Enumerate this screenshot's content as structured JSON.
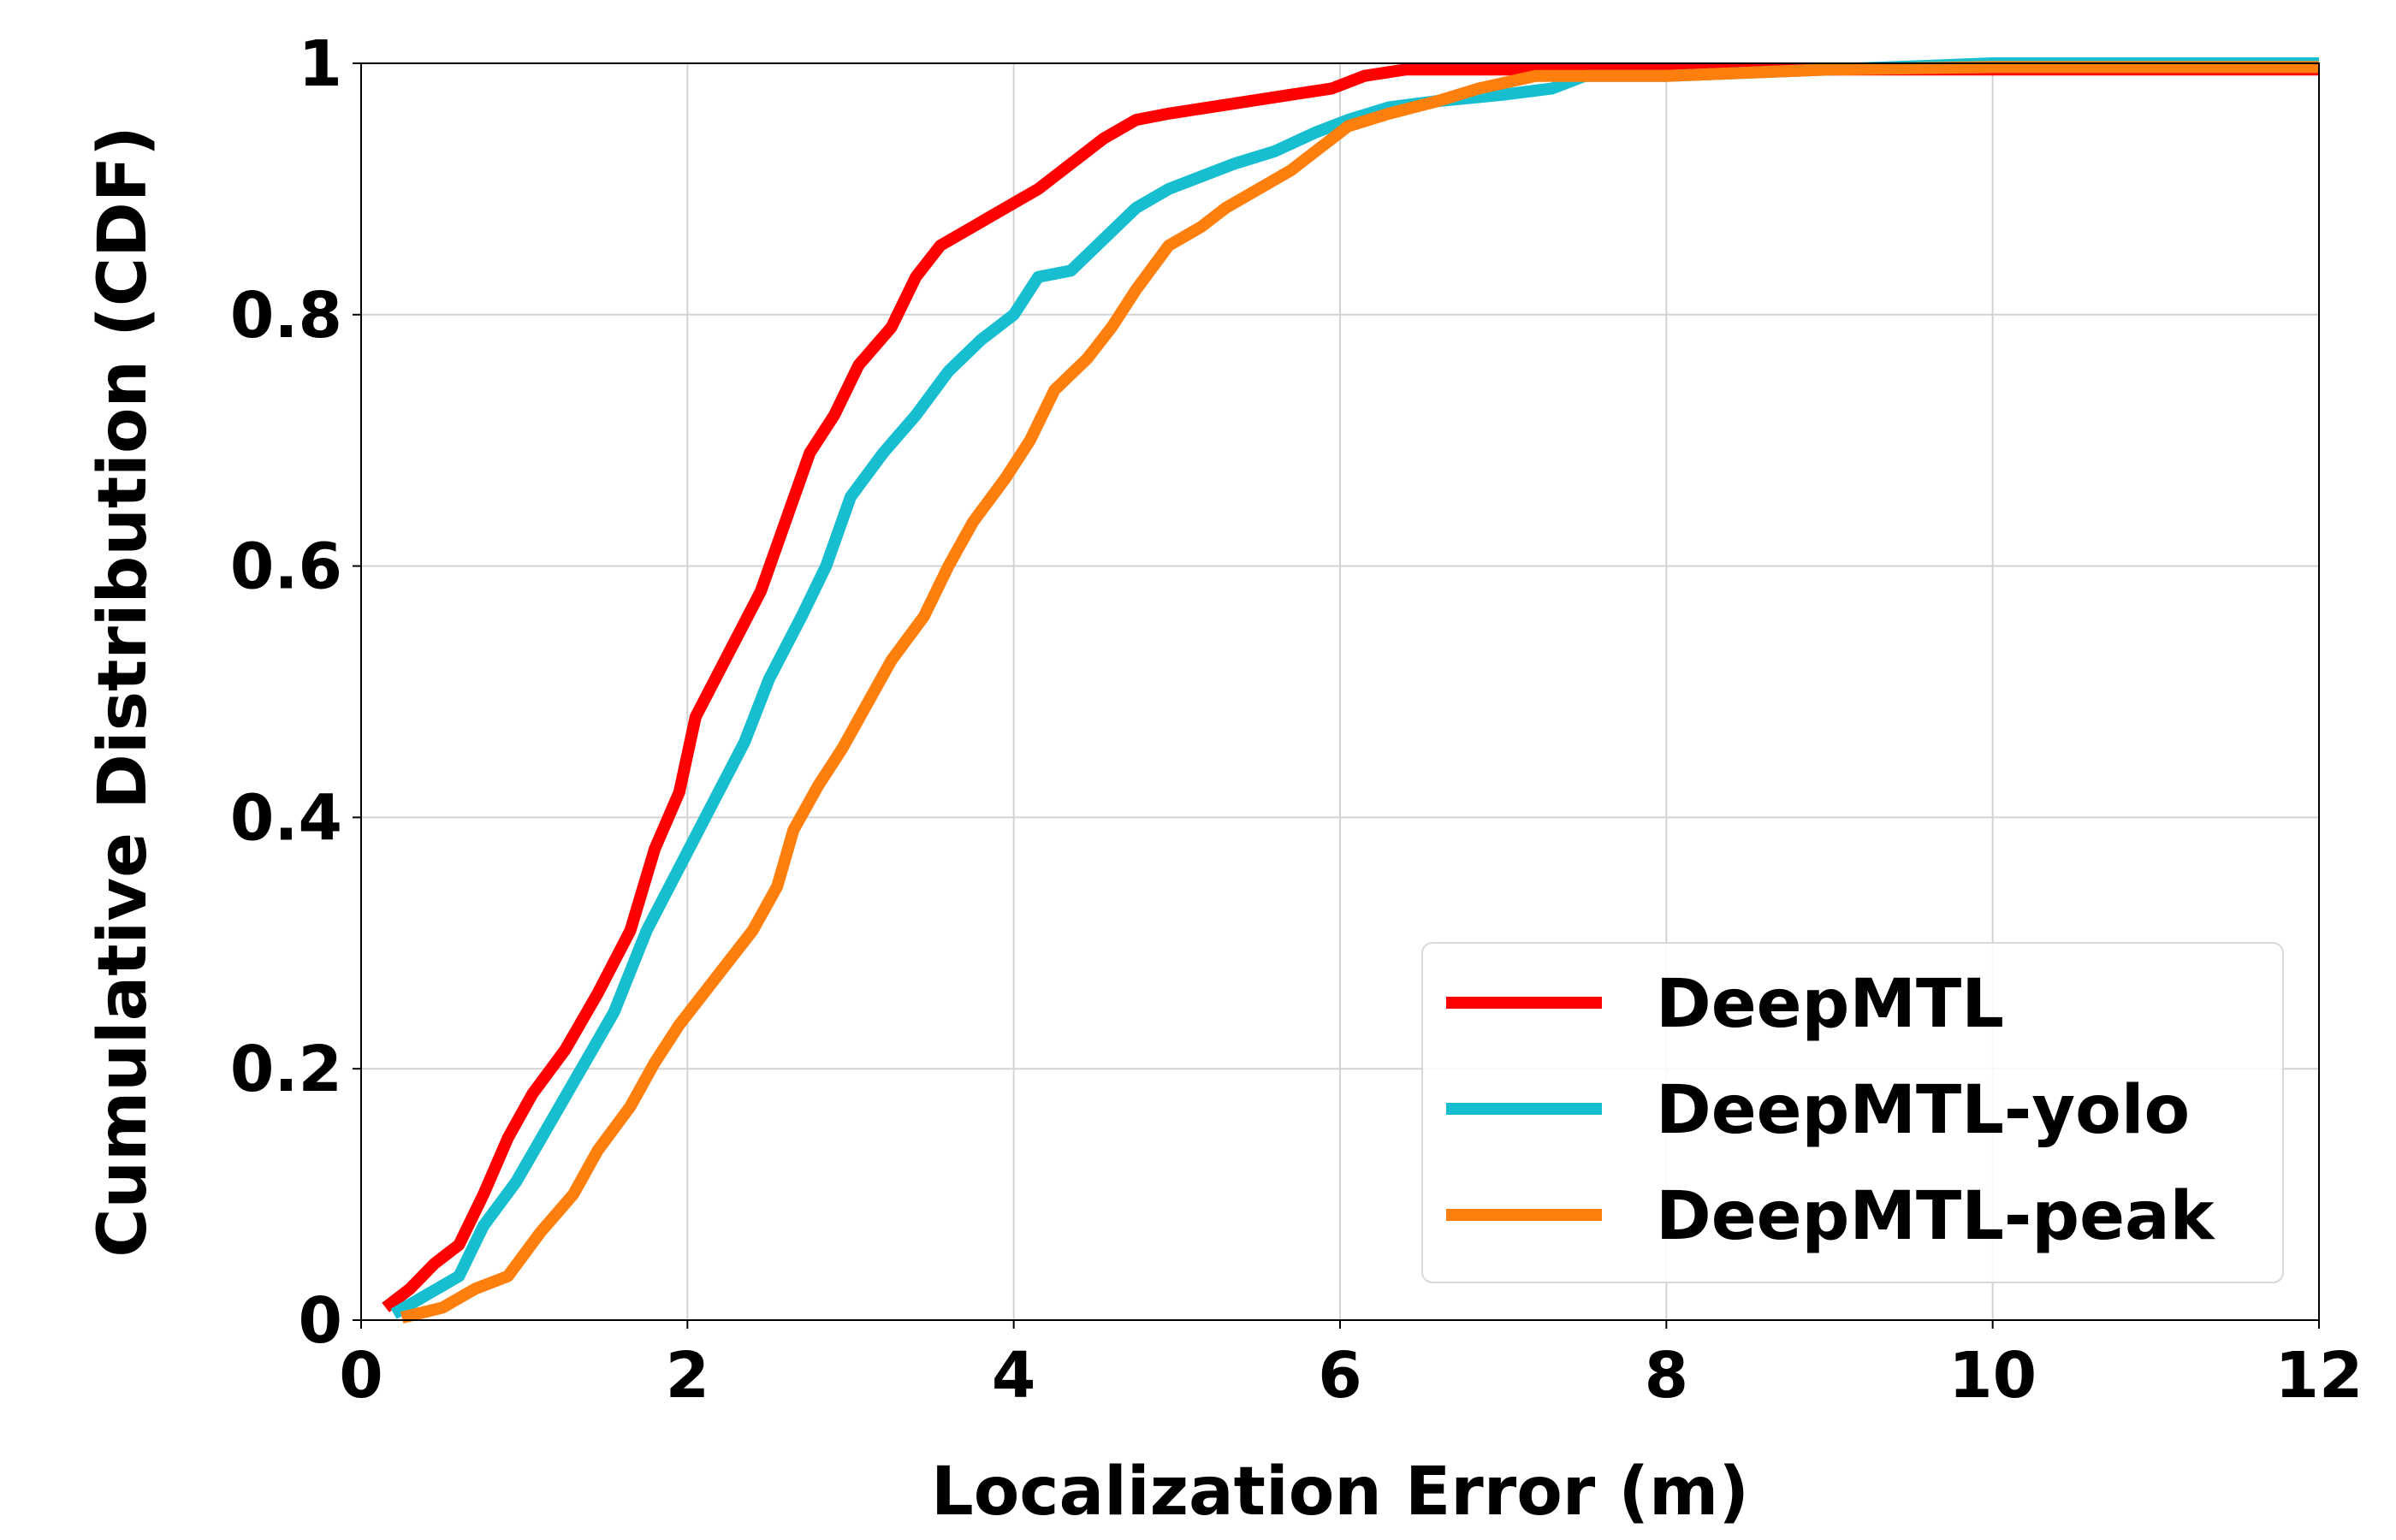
{
  "chart_data": {
    "type": "line",
    "title": "",
    "xlabel": "Localization Error (m)",
    "ylabel": "Cumulative Distribution (CDF)",
    "xlim": [
      0,
      12
    ],
    "ylim": [
      0,
      1
    ],
    "x_ticks": [
      0,
      2,
      4,
      6,
      8,
      10,
      12
    ],
    "x_tick_labels": [
      "0",
      "2",
      "4",
      "6",
      "8",
      "10",
      "12"
    ],
    "y_ticks": [
      0,
      0.2,
      0.4,
      0.6,
      0.8,
      1
    ],
    "y_tick_labels": [
      "0",
      "0.2",
      "0.4",
      "0.6",
      "0.8",
      "1"
    ],
    "grid": true,
    "legend_position": "lower-right",
    "series": [
      {
        "name": "DeepMTL",
        "color": "#ff0000",
        "points": [
          [
            0.15,
            0.01
          ],
          [
            0.3,
            0.025
          ],
          [
            0.45,
            0.045
          ],
          [
            0.6,
            0.06
          ],
          [
            0.75,
            0.1
          ],
          [
            0.9,
            0.145
          ],
          [
            1.05,
            0.18
          ],
          [
            1.25,
            0.215
          ],
          [
            1.45,
            0.26
          ],
          [
            1.65,
            0.31
          ],
          [
            1.8,
            0.375
          ],
          [
            1.95,
            0.42
          ],
          [
            2.05,
            0.48
          ],
          [
            2.25,
            0.53
          ],
          [
            2.45,
            0.58
          ],
          [
            2.6,
            0.635
          ],
          [
            2.75,
            0.69
          ],
          [
            2.9,
            0.72
          ],
          [
            3.05,
            0.76
          ],
          [
            3.25,
            0.79
          ],
          [
            3.4,
            0.83
          ],
          [
            3.55,
            0.855
          ],
          [
            3.75,
            0.87
          ],
          [
            3.95,
            0.885
          ],
          [
            4.15,
            0.9
          ],
          [
            4.35,
            0.92
          ],
          [
            4.55,
            0.94
          ],
          [
            4.75,
            0.955
          ],
          [
            4.95,
            0.96
          ],
          [
            5.2,
            0.965
          ],
          [
            5.45,
            0.97
          ],
          [
            5.7,
            0.975
          ],
          [
            5.95,
            0.98
          ],
          [
            6.15,
            0.99
          ],
          [
            6.4,
            0.995
          ],
          [
            7.0,
            0.995
          ],
          [
            9.5,
            0.995
          ],
          [
            12,
            0.995
          ]
        ]
      },
      {
        "name": "DeepMTL-yolo",
        "color": "#17becf",
        "points": [
          [
            0.2,
            0.005
          ],
          [
            0.4,
            0.02
          ],
          [
            0.6,
            0.035
          ],
          [
            0.75,
            0.075
          ],
          [
            0.95,
            0.11
          ],
          [
            1.15,
            0.155
          ],
          [
            1.35,
            0.2
          ],
          [
            1.55,
            0.245
          ],
          [
            1.75,
            0.31
          ],
          [
            1.95,
            0.36
          ],
          [
            2.15,
            0.41
          ],
          [
            2.35,
            0.46
          ],
          [
            2.5,
            0.51
          ],
          [
            2.7,
            0.56
          ],
          [
            2.85,
            0.6
          ],
          [
            3.0,
            0.655
          ],
          [
            3.2,
            0.69
          ],
          [
            3.4,
            0.72
          ],
          [
            3.6,
            0.755
          ],
          [
            3.8,
            0.78
          ],
          [
            4.0,
            0.8
          ],
          [
            4.15,
            0.83
          ],
          [
            4.35,
            0.835
          ],
          [
            4.55,
            0.86
          ],
          [
            4.75,
            0.885
          ],
          [
            4.95,
            0.9
          ],
          [
            5.15,
            0.91
          ],
          [
            5.35,
            0.92
          ],
          [
            5.6,
            0.93
          ],
          [
            5.85,
            0.945
          ],
          [
            6.05,
            0.955
          ],
          [
            6.3,
            0.965
          ],
          [
            6.6,
            0.97
          ],
          [
            7.0,
            0.975
          ],
          [
            7.3,
            0.98
          ],
          [
            7.5,
            0.99
          ],
          [
            8.0,
            0.99
          ],
          [
            9.0,
            0.995
          ],
          [
            10.0,
            1.0
          ],
          [
            12,
            1.0
          ]
        ]
      },
      {
        "name": "DeepMTL-peak",
        "color": "#ff7f0e",
        "points": [
          [
            0.25,
            0.002
          ],
          [
            0.5,
            0.01
          ],
          [
            0.7,
            0.025
          ],
          [
            0.9,
            0.035
          ],
          [
            1.1,
            0.07
          ],
          [
            1.3,
            0.1
          ],
          [
            1.45,
            0.135
          ],
          [
            1.65,
            0.17
          ],
          [
            1.8,
            0.205
          ],
          [
            1.95,
            0.235
          ],
          [
            2.1,
            0.26
          ],
          [
            2.25,
            0.285
          ],
          [
            2.4,
            0.31
          ],
          [
            2.55,
            0.345
          ],
          [
            2.65,
            0.39
          ],
          [
            2.8,
            0.425
          ],
          [
            2.95,
            0.455
          ],
          [
            3.1,
            0.49
          ],
          [
            3.25,
            0.525
          ],
          [
            3.45,
            0.56
          ],
          [
            3.6,
            0.6
          ],
          [
            3.75,
            0.635
          ],
          [
            3.95,
            0.67
          ],
          [
            4.1,
            0.7
          ],
          [
            4.25,
            0.74
          ],
          [
            4.45,
            0.765
          ],
          [
            4.6,
            0.79
          ],
          [
            4.75,
            0.82
          ],
          [
            4.95,
            0.855
          ],
          [
            5.15,
            0.87
          ],
          [
            5.3,
            0.885
          ],
          [
            5.5,
            0.9
          ],
          [
            5.7,
            0.915
          ],
          [
            5.9,
            0.935
          ],
          [
            6.05,
            0.95
          ],
          [
            6.3,
            0.96
          ],
          [
            6.6,
            0.97
          ],
          [
            6.85,
            0.98
          ],
          [
            7.2,
            0.99
          ],
          [
            7.6,
            0.99
          ],
          [
            8.0,
            0.99
          ],
          [
            9.0,
            0.995
          ],
          [
            10.0,
            0.997
          ],
          [
            12,
            0.997
          ]
        ]
      }
    ]
  }
}
